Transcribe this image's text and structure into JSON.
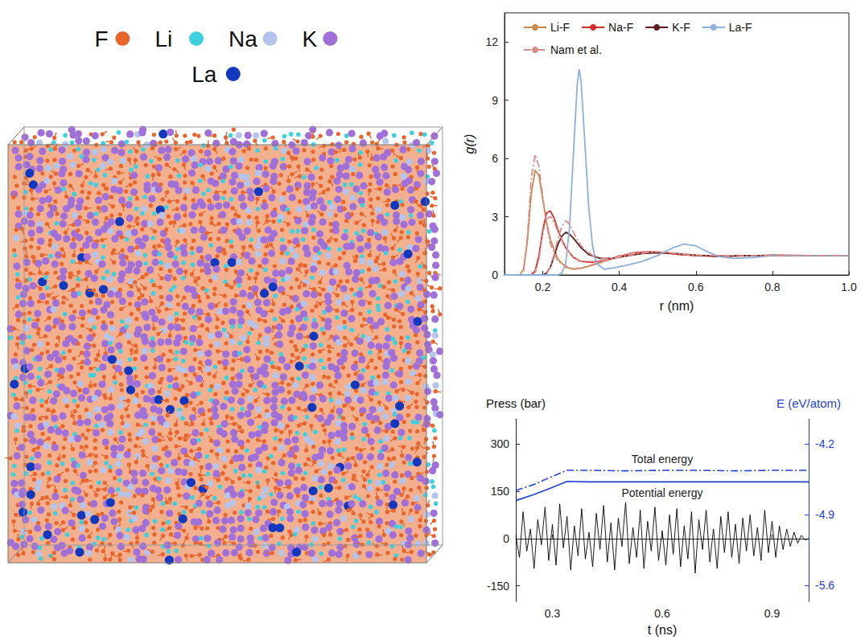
{
  "snapshot": {
    "legend": [
      {
        "label": "F",
        "color": "#e8652e"
      },
      {
        "label": "Li",
        "color": "#3fd0e0"
      },
      {
        "label": "Na",
        "color": "#b4c4ec"
      },
      {
        "label": "K",
        "color": "#a070d8"
      },
      {
        "label": "La",
        "color": "#1238c0"
      }
    ]
  },
  "chart_data": [
    {
      "type": "line",
      "xlabel": "r (nm)",
      "ylabel": "g(r)",
      "xlim": [
        0.1,
        1.0
      ],
      "xticks": [
        0.2,
        0.4,
        0.6,
        0.8,
        {
          "value": 1,
          "label": "1.0"
        }
      ],
      "ylim": [
        0,
        13.5
      ],
      "yticks": [
        0,
        3,
        6,
        9,
        12
      ],
      "grid": false,
      "legend": "top",
      "series": [
        {
          "name": "Li-F",
          "color": "#c98a4b",
          "line_style": "solid",
          "x": [
            0.1,
            0.14,
            0.15,
            0.16,
            0.17,
            0.18,
            0.19,
            0.2,
            0.21,
            0.22,
            0.24,
            0.26,
            0.28,
            0.3,
            0.33,
            0.36,
            0.4,
            0.44,
            0.48,
            0.52,
            0.56,
            0.6,
            0.65,
            0.7,
            0.8,
            0.9,
            1.0
          ],
          "values": [
            0,
            0,
            0.3,
            1.8,
            4.2,
            5.4,
            5.1,
            3.9,
            2.7,
            1.8,
            0.8,
            0.4,
            0.3,
            0.35,
            0.5,
            0.7,
            0.95,
            1.15,
            1.2,
            1.15,
            1.05,
            1.0,
            0.97,
            0.98,
            1.01,
            1.0,
            1.0
          ]
        },
        {
          "name": "Na-F",
          "color": "#d42a2a",
          "line_style": "solid",
          "x": [
            0.1,
            0.17,
            0.18,
            0.19,
            0.2,
            0.21,
            0.22,
            0.23,
            0.24,
            0.25,
            0.26,
            0.28,
            0.3,
            0.33,
            0.36,
            0.4,
            0.44,
            0.48,
            0.52,
            0.56,
            0.6,
            0.65,
            0.7,
            0.8,
            0.9,
            1.0
          ],
          "values": [
            0,
            0,
            0.2,
            1.0,
            2.3,
            3.2,
            3.3,
            2.9,
            2.3,
            1.8,
            1.4,
            0.9,
            0.7,
            0.65,
            0.75,
            0.95,
            1.12,
            1.18,
            1.12,
            1.05,
            1.0,
            0.97,
            0.98,
            1.01,
            1.0,
            1.0
          ]
        },
        {
          "name": "K-F",
          "color": "#5c1c1c",
          "line_style": "solid",
          "x": [
            0.1,
            0.2,
            0.21,
            0.22,
            0.23,
            0.24,
            0.25,
            0.26,
            0.27,
            0.28,
            0.3,
            0.32,
            0.35,
            0.38,
            0.42,
            0.46,
            0.5,
            0.55,
            0.6,
            0.65,
            0.7,
            0.8,
            0.9,
            1.0
          ],
          "values": [
            0,
            0,
            0.1,
            0.4,
            1.0,
            1.6,
            2.0,
            2.2,
            2.1,
            1.9,
            1.4,
            1.05,
            0.85,
            0.85,
            0.98,
            1.1,
            1.15,
            1.1,
            1.02,
            0.97,
            0.98,
            1.01,
            1.0,
            1.0
          ]
        },
        {
          "name": "La-F",
          "color": "#8db0d8",
          "line_style": "solid",
          "x": [
            0.1,
            0.24,
            0.25,
            0.26,
            0.27,
            0.28,
            0.29,
            0.295,
            0.3,
            0.31,
            0.32,
            0.33,
            0.34,
            0.36,
            0.38,
            0.42,
            0.46,
            0.5,
            0.54,
            0.57,
            0.6,
            0.63,
            0.66,
            0.7,
            0.75,
            0.8,
            0.9,
            1.0
          ],
          "values": [
            0,
            0,
            0.1,
            0.6,
            2.5,
            6.2,
            9.8,
            10.6,
            10.0,
            6.8,
            3.5,
            1.5,
            0.6,
            0.3,
            0.35,
            0.5,
            0.7,
            1.0,
            1.4,
            1.6,
            1.5,
            1.2,
            0.95,
            0.85,
            0.9,
            1.0,
            1.0,
            1.0
          ]
        },
        {
          "name": "Nam et al.",
          "color": "#d98c8c",
          "line_style": "dashdot",
          "x": [
            0.15,
            0.16,
            0.17,
            0.18,
            0.19,
            0.2,
            0.21,
            0.22,
            0.24,
            0.27,
            0.3,
            0.35,
            0.4,
            0.45,
            0.5,
            0.55,
            0.6,
            null,
            0.18,
            0.19,
            0.2,
            0.21,
            0.22,
            0.23,
            0.24,
            0.26,
            0.28,
            0.3,
            0.35,
            0.4,
            0.45,
            0.5,
            0.55,
            0.6,
            null,
            0.21,
            0.22,
            0.23,
            0.24,
            0.25,
            0.26,
            0.27,
            0.28,
            0.3,
            0.33,
            0.36,
            0.4,
            0.45,
            0.5,
            0.55,
            0.6,
            0.7,
            0.8,
            0.9,
            1.0
          ],
          "values": [
            0.2,
            2.0,
            5.0,
            6.2,
            5.6,
            4.0,
            2.6,
            1.6,
            0.7,
            0.35,
            0.35,
            0.65,
            1.0,
            1.2,
            1.2,
            1.1,
            1.0,
            null,
            0.1,
            0.8,
            2.2,
            2.9,
            3.0,
            2.7,
            2.2,
            1.4,
            0.9,
            0.7,
            0.7,
            0.95,
            1.15,
            1.2,
            1.1,
            1.0,
            null,
            0.1,
            0.4,
            1.1,
            1.9,
            2.5,
            2.8,
            2.6,
            2.2,
            1.5,
            1.0,
            0.85,
            0.9,
            1.1,
            1.2,
            1.12,
            1.02,
            0.98,
            1.0,
            1.0,
            1.0
          ]
        }
      ]
    },
    {
      "type": "line",
      "xlabel": "t (ns)",
      "ylabel": "Press (bar)",
      "y2label": "E (eV/atom)",
      "xlim": [
        0.2,
        1.0
      ],
      "xticks": [
        0.3,
        0.6,
        0.9
      ],
      "ylim": [
        -200,
        380
      ],
      "yticks": [
        -150,
        0,
        150,
        300
      ],
      "y2lim": [
        -5.76,
        -3.95
      ],
      "y2ticks": [
        -5.6,
        -4.9,
        -4.2
      ],
      "y2color": "#1f3fd0",
      "grid": false,
      "series": [
        {
          "color": "#000000",
          "line_style": "solid",
          "x": [
            0.2,
            0.21,
            0.22,
            0.23,
            0.24,
            0.25,
            0.26,
            0.27,
            0.28,
            0.29,
            0.3,
            0.31,
            0.32,
            0.33,
            0.34,
            0.35,
            0.36,
            0.37,
            0.38,
            0.39,
            0.4,
            0.41,
            0.42,
            0.43,
            0.44,
            0.45,
            0.46,
            0.47,
            0.48,
            0.49,
            0.5,
            0.51,
            0.52,
            0.53,
            0.54,
            0.55,
            0.56,
            0.57,
            0.58,
            0.59,
            0.6,
            0.61,
            0.62,
            0.63,
            0.64,
            0.65,
            0.66,
            0.67,
            0.68,
            0.69,
            0.7,
            0.71,
            0.72,
            0.73,
            0.74,
            0.75,
            0.76,
            0.77,
            0.78,
            0.79,
            0.8,
            0.81,
            0.82,
            0.83,
            0.84,
            0.85,
            0.86,
            0.87,
            0.88,
            0.89,
            0.9,
            0.91,
            0.92,
            0.93,
            0.94,
            0.95,
            0.96,
            0.97,
            0.98,
            0.99,
            1.0
          ],
          "values": [
            10,
            -60,
            85,
            -40,
            30,
            -95,
            60,
            -20,
            100,
            -70,
            45,
            -85,
            110,
            -30,
            70,
            -100,
            40,
            -55,
            95,
            -65,
            20,
            -90,
            80,
            -35,
            105,
            -75,
            50,
            -100,
            65,
            -25,
            115,
            -80,
            35,
            -60,
            90,
            -95,
            55,
            -40,
            100,
            -70,
            25,
            -85,
            75,
            -50,
            95,
            -90,
            40,
            -65,
            85,
            -110,
            60,
            -35,
            90,
            -75,
            30,
            -95,
            70,
            -45,
            85,
            -60,
            45,
            -80,
            65,
            -40,
            75,
            -55,
            35,
            -70,
            90,
            -45,
            55,
            -60,
            40,
            -35,
            30,
            -25,
            20,
            -15,
            10,
            -5,
            0
          ]
        },
        {
          "name": "Total energy",
          "color": "#1f3fd0",
          "line_style": "dashdot",
          "axis": "y2",
          "x": [
            0.2,
            0.25,
            0.3,
            0.34,
            0.4,
            0.5,
            0.6,
            0.7,
            0.8,
            0.9,
            1.0
          ],
          "values": [
            -4.66,
            -4.6,
            -4.52,
            -4.46,
            -4.46,
            -4.465,
            -4.46,
            -4.46,
            -4.465,
            -4.46,
            -4.46
          ]
        },
        {
          "name": "Potential energy",
          "color": "#1f3fd0",
          "line_style": "solid",
          "axis": "y2",
          "x": [
            0.2,
            0.25,
            0.3,
            0.34,
            0.4,
            0.5,
            0.6,
            0.7,
            0.8,
            0.9,
            1.0
          ],
          "values": [
            -4.76,
            -4.7,
            -4.63,
            -4.57,
            -4.575,
            -4.575,
            -4.575,
            -4.575,
            -4.575,
            -4.575,
            -4.575
          ]
        }
      ]
    }
  ]
}
